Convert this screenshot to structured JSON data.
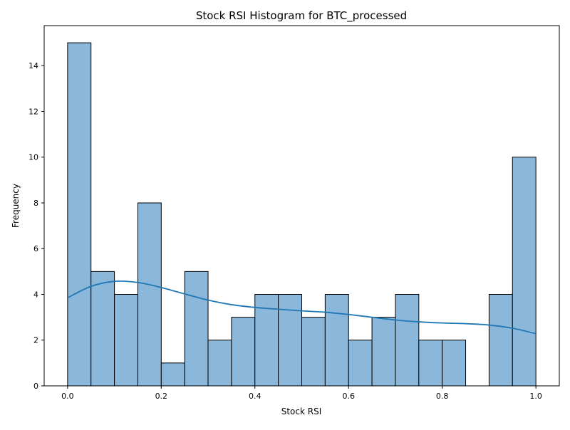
{
  "chart_data": {
    "type": "bar",
    "subtype": "histogram_with_kde",
    "title": "Stock RSI Histogram for BTC_processed",
    "xlabel": "Stock RSI",
    "ylabel": "Frequency",
    "xlim": [
      -0.05,
      1.05
    ],
    "ylim": [
      0,
      15.75
    ],
    "x_ticks": [
      0.0,
      0.2,
      0.4,
      0.6,
      0.8,
      1.0
    ],
    "x_tick_labels": [
      "0.0",
      "0.2",
      "0.4",
      "0.6",
      "0.8",
      "1.0"
    ],
    "y_ticks": [
      0,
      2,
      4,
      6,
      8,
      10,
      12,
      14
    ],
    "y_tick_labels": [
      "0",
      "2",
      "4",
      "6",
      "8",
      "10",
      "12",
      "14"
    ],
    "bin_edges": [
      0.0,
      0.05,
      0.1,
      0.15,
      0.2,
      0.25,
      0.3,
      0.35,
      0.4,
      0.45,
      0.5,
      0.55,
      0.6,
      0.65,
      0.7,
      0.75,
      0.8,
      0.85,
      0.9,
      0.95,
      1.0
    ],
    "values": [
      15,
      5,
      4,
      8,
      1,
      5,
      2,
      3,
      4,
      4,
      3,
      4,
      2,
      3,
      4,
      2,
      2,
      0,
      4,
      10
    ],
    "kde": {
      "x": [
        0.0,
        0.05,
        0.1,
        0.15,
        0.2,
        0.25,
        0.3,
        0.35,
        0.4,
        0.45,
        0.5,
        0.55,
        0.6,
        0.65,
        0.7,
        0.75,
        0.8,
        0.85,
        0.9,
        0.95,
        1.0
      ],
      "y": [
        3.85,
        4.35,
        4.57,
        4.52,
        4.3,
        4.02,
        3.75,
        3.55,
        3.43,
        3.35,
        3.28,
        3.22,
        3.12,
        3.0,
        2.88,
        2.8,
        2.75,
        2.72,
        2.66,
        2.52,
        2.28
      ]
    },
    "colors": {
      "bar_fill": "#8bb8da",
      "bar_edge": "#000000",
      "kde_line": "#1f77b4",
      "axes": "#000000"
    },
    "grid": false,
    "legend": "none"
  }
}
